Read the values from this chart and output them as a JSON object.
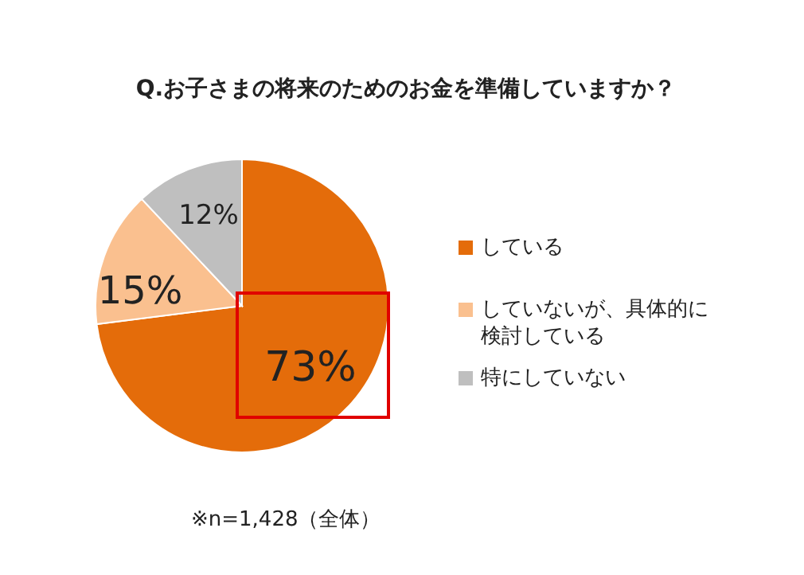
{
  "chart_data": {
    "type": "pie",
    "title": "Q.お子さまの将来のためのお金を準備していますか？",
    "categories": [
      "している",
      "していないが、具体的に検討している",
      "特にしていない"
    ],
    "values": [
      73,
      15,
      12
    ],
    "colors": [
      "#e46c0a",
      "#fac08f",
      "#bfbfbf"
    ],
    "value_labels": [
      "73%",
      "15%",
      "12%"
    ],
    "legend": "right",
    "annotations": [
      "※n=1,428（全体）"
    ]
  }
}
